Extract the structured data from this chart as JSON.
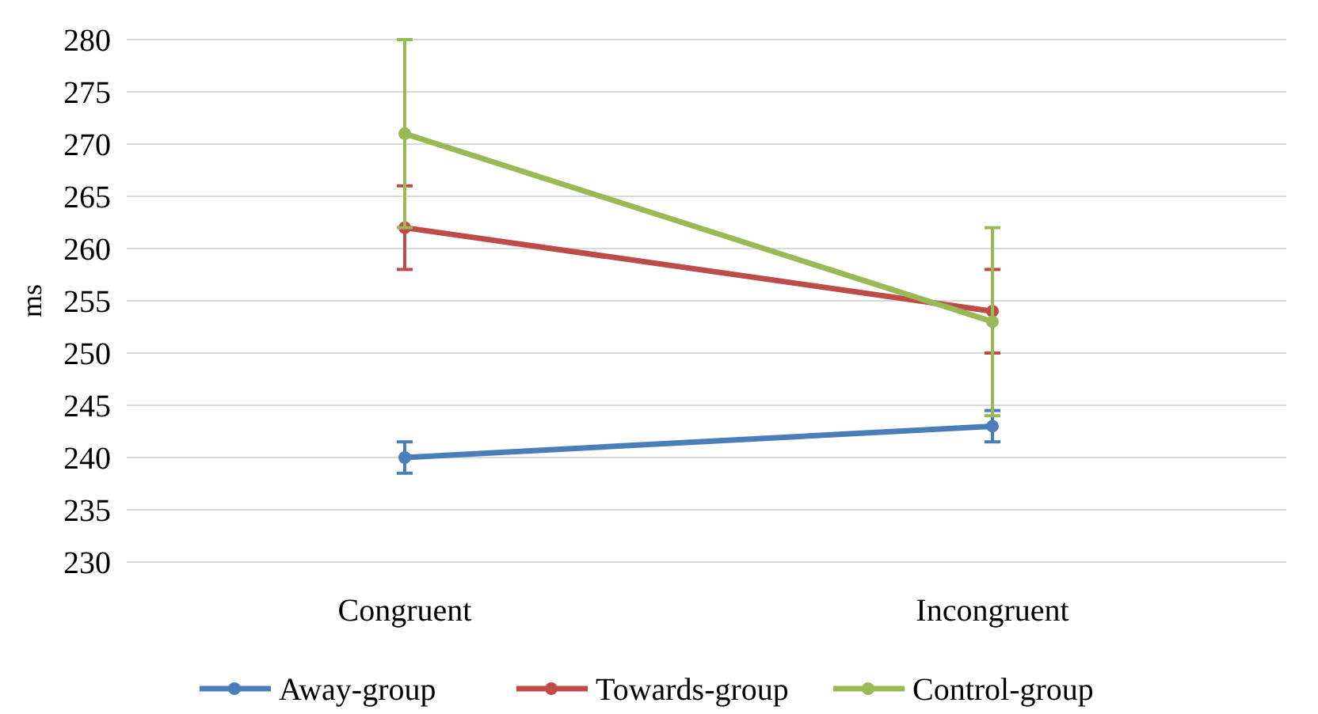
{
  "chart_data": {
    "type": "line",
    "ylabel": "ms",
    "categories": [
      "Congruent",
      "Incongruent"
    ],
    "ylim": [
      230,
      280
    ],
    "yticks": [
      230,
      235,
      240,
      245,
      250,
      255,
      260,
      265,
      270,
      275,
      280
    ],
    "grid": "y",
    "legend": "bottom",
    "marker": "circle",
    "series": [
      {
        "name": "Away-group",
        "color": "#4a7ebb",
        "values": [
          240,
          243
        ],
        "errors": [
          1.5,
          1.5
        ]
      },
      {
        "name": "Towards-group",
        "color": "#be4b48",
        "values": [
          262,
          254
        ],
        "errors": [
          4,
          4
        ]
      },
      {
        "name": "Control-group",
        "color": "#98b954",
        "values": [
          271,
          253
        ],
        "errors": [
          9,
          9
        ]
      }
    ]
  }
}
